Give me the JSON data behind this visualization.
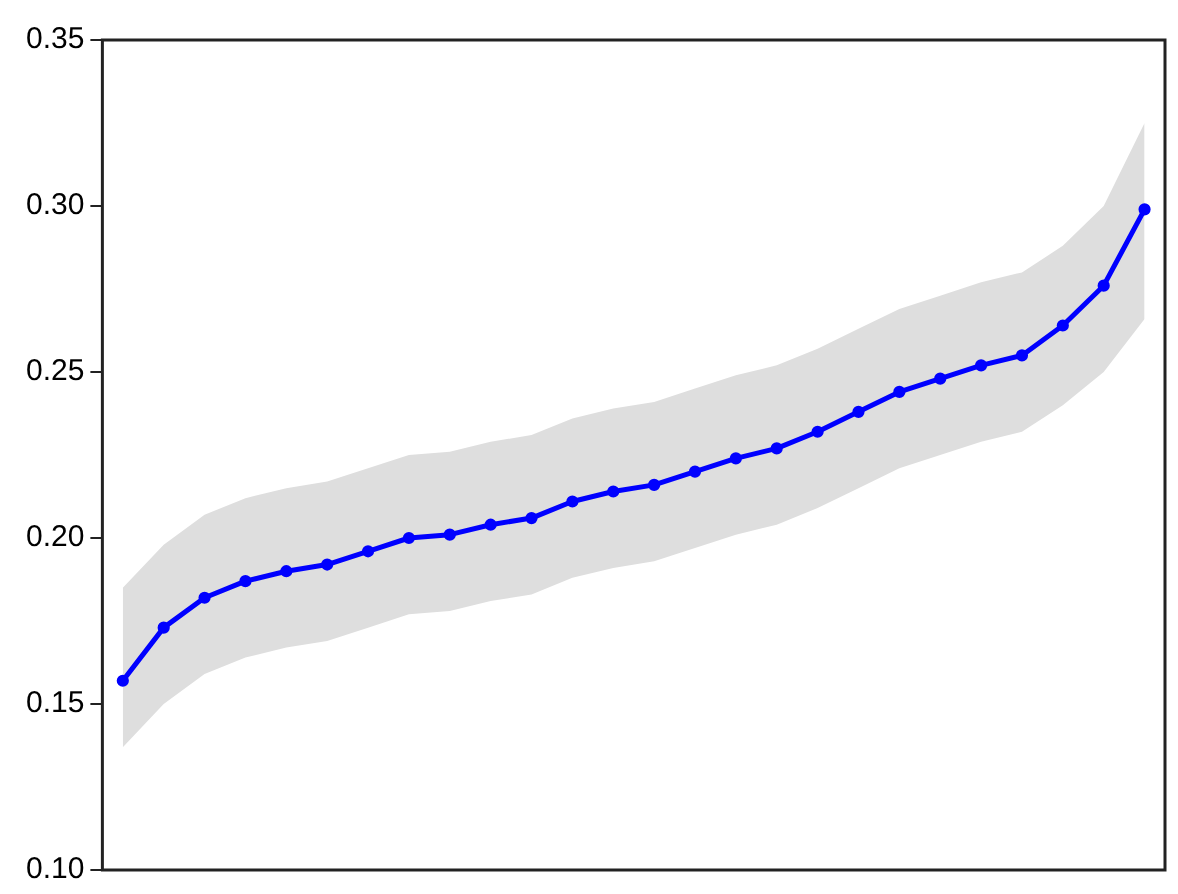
{
  "chart_data": {
    "type": "line",
    "categories": [
      null,
      null,
      null,
      null,
      null,
      null,
      null,
      null,
      null,
      null,
      null,
      null,
      null,
      null,
      null,
      null,
      null,
      null,
      null,
      null,
      null,
      null,
      null,
      null,
      null,
      null
    ],
    "series": [
      {
        "color": "#0000ff",
        "values": [
          0.157,
          0.173,
          0.182,
          0.187,
          0.19,
          0.192,
          0.196,
          0.2,
          0.201,
          0.204,
          0.206,
          0.211,
          0.214,
          0.216,
          0.22,
          0.224,
          0.227,
          0.232,
          0.238,
          0.244,
          0.248,
          0.252,
          0.255,
          0.264,
          0.276,
          0.299
        ],
        "lower": [
          0.137,
          0.15,
          0.159,
          0.164,
          0.167,
          0.169,
          0.173,
          0.177,
          0.178,
          0.181,
          0.183,
          0.188,
          0.191,
          0.193,
          0.197,
          0.201,
          0.204,
          0.209,
          0.215,
          0.221,
          0.225,
          0.229,
          0.232,
          0.24,
          0.25,
          0.266
        ],
        "upper": [
          0.185,
          0.198,
          0.207,
          0.212,
          0.215,
          0.217,
          0.221,
          0.225,
          0.226,
          0.229,
          0.231,
          0.236,
          0.239,
          0.241,
          0.245,
          0.249,
          0.252,
          0.257,
          0.263,
          0.269,
          0.273,
          0.277,
          0.28,
          0.288,
          0.3,
          0.325
        ]
      }
    ],
    "ylim": [
      0.1,
      0.35
    ],
    "yticks": [
      {
        "value": 0.1,
        "label": "0.10"
      },
      {
        "value": 0.15,
        "label": "0.15"
      },
      {
        "value": 0.2,
        "label": "0.20"
      },
      {
        "value": 0.25,
        "label": "0.25"
      },
      {
        "value": 0.3,
        "label": "0.30"
      },
      {
        "value": 0.35,
        "label": "0.35"
      }
    ],
    "marker": "circle",
    "tick_labels": "y",
    "grid": false,
    "legend": false
  }
}
